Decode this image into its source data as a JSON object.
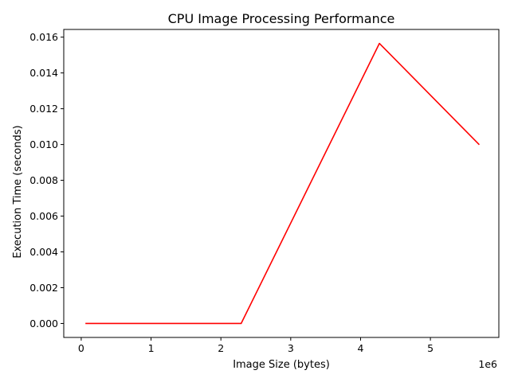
{
  "chart_data": {
    "type": "line",
    "title": "CPU Image Processing Performance",
    "xlabel": "Image Size (bytes)",
    "ylabel": "Execution Time (seconds)",
    "x_offset_label": "1e6",
    "xlim": [
      -250000,
      5980000
    ],
    "ylim": [
      -0.00078,
      0.01643
    ],
    "x_ticks": [
      0,
      1000000,
      2000000,
      3000000,
      4000000,
      5000000
    ],
    "x_tick_labels": [
      "0",
      "1",
      "2",
      "3",
      "4",
      "5"
    ],
    "y_ticks": [
      0.0,
      0.002,
      0.004,
      0.006,
      0.008,
      0.01,
      0.012,
      0.014,
      0.016
    ],
    "y_tick_labels": [
      "0.000",
      "0.002",
      "0.004",
      "0.006",
      "0.008",
      "0.010",
      "0.012",
      "0.014",
      "0.016"
    ],
    "grid": false,
    "series": [
      {
        "color": "#ff0000",
        "x": [
          60000,
          2290000,
          4270000,
          5700000
        ],
        "y": [
          0.0,
          0.0,
          0.01565,
          0.00999
        ]
      }
    ]
  }
}
